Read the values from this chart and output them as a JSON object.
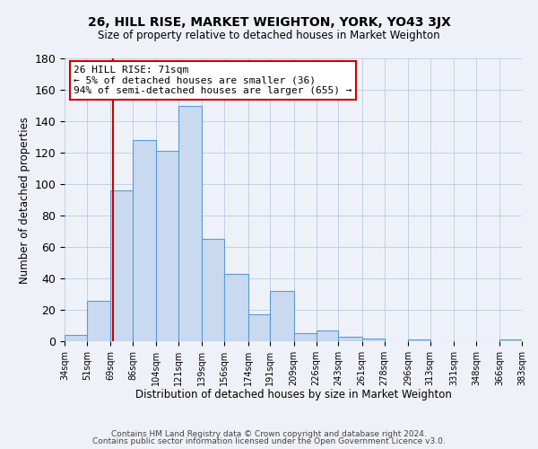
{
  "title": "26, HILL RISE, MARKET WEIGHTON, YORK, YO43 3JX",
  "subtitle": "Size of property relative to detached houses in Market Weighton",
  "xlabel": "Distribution of detached houses by size in Market Weighton",
  "ylabel": "Number of detached properties",
  "bin_edges": [
    34,
    51,
    69,
    86,
    104,
    121,
    139,
    156,
    174,
    191,
    209,
    226,
    243,
    261,
    278,
    296,
    313,
    331,
    348,
    366,
    383
  ],
  "bar_heights": [
    4,
    26,
    96,
    128,
    121,
    150,
    65,
    43,
    17,
    32,
    5,
    7,
    3,
    2,
    0,
    1,
    0,
    0,
    0,
    1
  ],
  "bar_color": "#c8d9f0",
  "bar_edge_color": "#5b9bd5",
  "property_line_x": 71,
  "property_line_color": "#cc0000",
  "annotation_line1": "26 HILL RISE: 71sqm",
  "annotation_line2": "← 5% of detached houses are smaller (36)",
  "annotation_line3": "94% of semi-detached houses are larger (655) →",
  "annotation_box_color": "#cc0000",
  "ylim": [
    0,
    180
  ],
  "yticks": [
    0,
    20,
    40,
    60,
    80,
    100,
    120,
    140,
    160,
    180
  ],
  "tick_labels": [
    "34sqm",
    "51sqm",
    "69sqm",
    "86sqm",
    "104sqm",
    "121sqm",
    "139sqm",
    "156sqm",
    "174sqm",
    "191sqm",
    "209sqm",
    "226sqm",
    "243sqm",
    "261sqm",
    "278sqm",
    "296sqm",
    "313sqm",
    "331sqm",
    "348sqm",
    "366sqm",
    "383sqm"
  ],
  "footer_line1": "Contains HM Land Registry data © Crown copyright and database right 2024.",
  "footer_line2": "Contains public sector information licensed under the Open Government Licence v3.0.",
  "background_color": "#eef2f8",
  "plot_bg_color": "#eef2f8"
}
